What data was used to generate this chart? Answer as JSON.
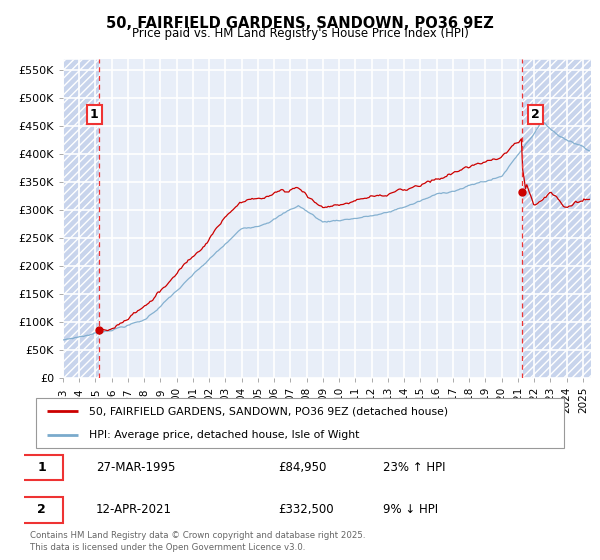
{
  "title": "50, FAIRFIELD GARDENS, SANDOWN, PO36 9EZ",
  "subtitle": "Price paid vs. HM Land Registry's House Price Index (HPI)",
  "ylabel_values": [
    "£0",
    "£50K",
    "£100K",
    "£150K",
    "£200K",
    "£250K",
    "£300K",
    "£350K",
    "£400K",
    "£450K",
    "£500K",
    "£550K"
  ],
  "yticks": [
    0,
    50000,
    100000,
    150000,
    200000,
    250000,
    300000,
    350000,
    400000,
    450000,
    500000,
    550000
  ],
  "ylim": [
    0,
    570000
  ],
  "xlim_start": 1993.0,
  "xlim_end": 2025.5,
  "xtick_years": [
    1993,
    1994,
    1995,
    1996,
    1997,
    1998,
    1999,
    2000,
    2001,
    2002,
    2003,
    2004,
    2005,
    2006,
    2007,
    2008,
    2009,
    2010,
    2011,
    2012,
    2013,
    2014,
    2015,
    2016,
    2017,
    2018,
    2019,
    2020,
    2021,
    2022,
    2023,
    2024,
    2025
  ],
  "background_color": "#ffffff",
  "plot_bg_color": "#e8eef8",
  "grid_color": "#ffffff",
  "hatch_color": "#c8d4ec",
  "red_line_color": "#cc0000",
  "blue_line_color": "#7aaacc",
  "dashed_red_color": "#ee3333",
  "point1_x": 1995.23,
  "point1_y": 84950,
  "point2_x": 2021.28,
  "point2_y": 332500,
  "legend_line1": "50, FAIRFIELD GARDENS, SANDOWN, PO36 9EZ (detached house)",
  "legend_line2": "HPI: Average price, detached house, Isle of Wight",
  "table_row1": [
    "1",
    "27-MAR-1995",
    "£84,950",
    "23% ↑ HPI"
  ],
  "table_row2": [
    "2",
    "12-APR-2021",
    "£332,500",
    "9% ↓ HPI"
  ],
  "footnote": "Contains HM Land Registry data © Crown copyright and database right 2025.\nThis data is licensed under the Open Government Licence v3.0."
}
